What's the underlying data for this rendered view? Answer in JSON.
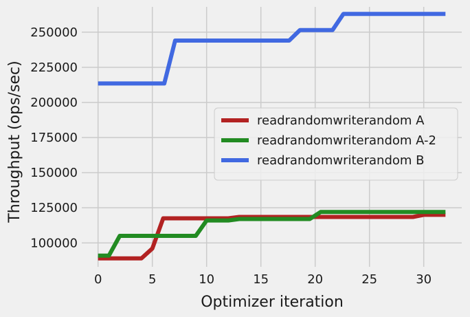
{
  "chart_data": {
    "type": "line",
    "title": "",
    "xlabel": "Optimizer iteration",
    "ylabel": "Throughput (ops/sec)",
    "xlim": [
      -1.5,
      33.5
    ],
    "ylim": [
      83000,
      268000
    ],
    "xticks": [
      0,
      5,
      10,
      15,
      20,
      25,
      30
    ],
    "yticks": [
      100000,
      125000,
      150000,
      175000,
      200000,
      225000,
      250000
    ],
    "grid": true,
    "legend_position": "center-right",
    "series": [
      {
        "name": "readrandomwriterandom A",
        "color": "#b22222",
        "x": [
          0,
          4,
          5,
          6,
          12,
          13,
          29,
          30,
          32
        ],
        "y": [
          89000,
          89000,
          96000,
          117500,
          117500,
          118500,
          118500,
          120000,
          120000
        ]
      },
      {
        "name": "readrandomwriterandom A-2",
        "color": "#228b22",
        "x": [
          0,
          1,
          2,
          9,
          10,
          12,
          13,
          19.5,
          20.5,
          32
        ],
        "y": [
          91000,
          91000,
          105000,
          105000,
          116000,
          116000,
          117000,
          117000,
          122000,
          122000
        ]
      },
      {
        "name": "readrandomwriterandom B",
        "color": "#4169e1",
        "x": [
          0,
          6.1,
          7.1,
          17.6,
          18.6,
          21.6,
          22.6,
          32
        ],
        "y": [
          213500,
          213500,
          244000,
          244000,
          251500,
          251500,
          263000,
          263000
        ]
      }
    ]
  }
}
